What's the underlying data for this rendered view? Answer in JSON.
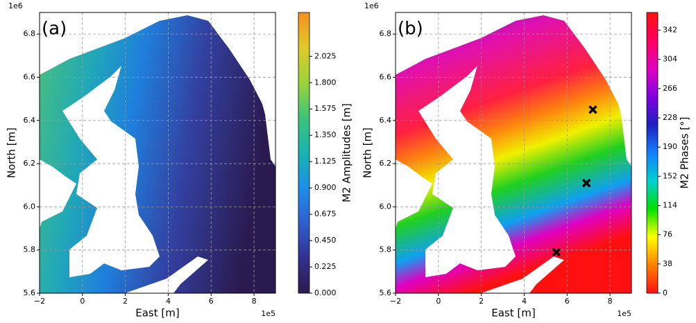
{
  "chart_data": [
    {
      "type": "map",
      "panel_label": "(a)",
      "xlabel": "East [m]",
      "ylabel": "North [m]",
      "x_offset": "1e5",
      "y_offset": "1e6",
      "xlim": [
        -2,
        9
      ],
      "ylim": [
        5.6,
        6.9
      ],
      "xticks": [
        {
          "value": -2,
          "label": "−2"
        },
        0,
        2,
        4,
        6,
        8
      ],
      "yticks": [
        5.6,
        5.8,
        {
          "value": 6,
          "label": "6.0"
        },
        6.2,
        6.4,
        6.6,
        6.8
      ],
      "grid": true,
      "colorbar_label": "M2 Amplitudes [m]",
      "clim": [
        0,
        2.4
      ],
      "cticks": [
        {
          "value": 0,
          "label": "0.000"
        },
        {
          "value": 0.225,
          "label": "0.225"
        },
        {
          "value": 0.45,
          "label": "0.450"
        },
        {
          "value": 0.675,
          "label": "0.675"
        },
        {
          "value": 0.9,
          "label": "0.900"
        },
        {
          "value": 1.125,
          "label": "1.125"
        },
        {
          "value": 1.35,
          "label": "1.350"
        },
        {
          "value": 1.575,
          "label": "1.575"
        },
        {
          "value": 1.8,
          "label": "1.800"
        },
        {
          "value": 2.025,
          "label": "2.025"
        }
      ],
      "colormap": [
        "#2b1a4f",
        "#33308f",
        "#2f5fd0",
        "#1e8fe8",
        "#18b4b0",
        "#3cc47a",
        "#9bd43a",
        "#e0c92a",
        "#f7911e"
      ]
    },
    {
      "type": "map",
      "panel_label": "(b)",
      "xlabel": "East [m]",
      "ylabel": "North [m]",
      "x_offset": "1e5",
      "y_offset": "1e6",
      "xlim": [
        -2,
        9
      ],
      "ylim": [
        5.6,
        6.9
      ],
      "xticks": [
        {
          "value": -2,
          "label": "−2"
        },
        0,
        2,
        4,
        6,
        8
      ],
      "yticks": [
        5.6,
        5.8,
        {
          "value": 6,
          "label": "6.0"
        },
        6.2,
        6.4,
        6.6,
        6.8
      ],
      "grid": true,
      "colorbar_label": "M2 Phases [°]",
      "clim": [
        0,
        365
      ],
      "cticks": [
        0,
        38,
        76,
        114,
        152,
        190,
        228,
        266,
        304,
        342
      ],
      "colormap": [
        "#ff1010",
        "#ff8000",
        "#ffff00",
        "#00e000",
        "#00d0d0",
        "#1080ff",
        "#2020c0",
        "#8000e0",
        "#e000c0",
        "#ff0060",
        "#ff1010"
      ],
      "markers": {
        "x": [
          7.2,
          6.9,
          5.5
        ],
        "y": [
          6.45,
          6.11,
          5.79
        ]
      }
    }
  ]
}
